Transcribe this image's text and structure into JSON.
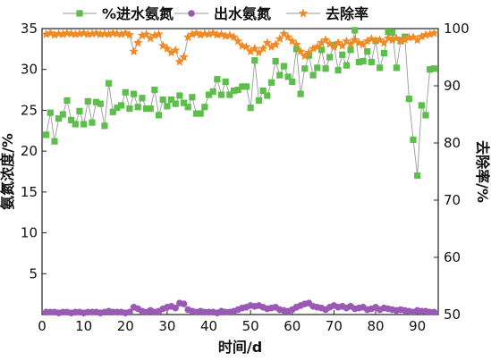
{
  "chart_data": {
    "type": "line",
    "xlabel": "时间/d",
    "ylabel_left": "氨氮浓度/%",
    "ylabel_right": "去除率/%",
    "xlim": [
      0,
      95
    ],
    "ylim_left": [
      0,
      35
    ],
    "ylim_right": [
      50,
      100
    ],
    "xticks": [
      0,
      10,
      20,
      30,
      40,
      50,
      60,
      70,
      80,
      90
    ],
    "yticks_left": [
      5,
      10,
      15,
      20,
      25,
      30,
      35
    ],
    "yticks_right": [
      50,
      60,
      70,
      80,
      90,
      100
    ],
    "legend": [
      "%进水氨氮",
      "出水氨氮",
      "去除率"
    ],
    "legend_position": "top",
    "grid": false,
    "colors": {
      "influent": "#5cbf4a",
      "effluent": "#9b59b6",
      "removal": "#f08a24",
      "connector": "#9a9a9a",
      "axis": "#222222"
    },
    "series": [
      {
        "name": "%进水氨氮",
        "axis": "left",
        "marker": "square",
        "x": [
          1,
          2,
          3,
          4,
          5,
          6,
          7,
          8,
          9,
          10,
          11,
          12,
          13,
          14,
          15,
          16,
          17,
          18,
          19,
          20,
          21,
          22,
          23,
          24,
          25,
          26,
          27,
          28,
          29,
          30,
          31,
          32,
          33,
          34,
          35,
          36,
          37,
          38,
          39,
          40,
          41,
          42,
          43,
          44,
          45,
          46,
          47,
          48,
          49,
          50,
          51,
          52,
          53,
          54,
          55,
          56,
          57,
          58,
          59,
          60,
          61,
          62,
          63,
          64,
          65,
          66,
          67,
          68,
          69,
          70,
          71,
          72,
          73,
          74,
          75,
          76,
          77,
          78,
          79,
          80,
          81,
          82,
          83,
          84,
          85,
          86,
          87,
          88,
          89,
          90,
          91,
          92,
          93,
          94
        ],
        "values": [
          22.0,
          24.7,
          21.2,
          24.0,
          24.5,
          26.2,
          23.8,
          23.3,
          24.9,
          23.3,
          26.1,
          23.5,
          26.0,
          25.8,
          23.1,
          28.3,
          24.8,
          25.3,
          25.6,
          27.2,
          25.2,
          27.0,
          25.4,
          26.5,
          25.2,
          25.2,
          27.5,
          24.4,
          26.3,
          25.5,
          26.3,
          25.8,
          26.8,
          25.9,
          25.4,
          26.6,
          24.6,
          24.6,
          25.4,
          26.9,
          27.3,
          28.8,
          26.9,
          28.5,
          26.9,
          27.4,
          27.5,
          27.9,
          27.9,
          25.3,
          31.1,
          26.2,
          27.4,
          26.8,
          28.4,
          31.0,
          29.3,
          30.4,
          29.1,
          28.5,
          32.5,
          27.0,
          30.1,
          31.7,
          29.3,
          30.2,
          32.4,
          30.1,
          31.5,
          33.0,
          29.9,
          31.8,
          30.5,
          32.4,
          34.8,
          30.9,
          31.0,
          32.2,
          30.9,
          33.5,
          30.2,
          32.0,
          34.6,
          34.5,
          30.2,
          33.5,
          34.0,
          26.4,
          21.4,
          17.0,
          25.6,
          24.4,
          30.0,
          30.1
        ]
      },
      {
        "name": "出水氨氮",
        "axis": "left",
        "marker": "circle",
        "x": [
          1,
          2,
          3,
          4,
          5,
          6,
          7,
          8,
          9,
          10,
          11,
          12,
          13,
          14,
          15,
          16,
          17,
          18,
          19,
          20,
          21,
          22,
          23,
          24,
          25,
          26,
          27,
          28,
          29,
          30,
          31,
          32,
          33,
          34,
          35,
          36,
          37,
          38,
          39,
          40,
          41,
          42,
          43,
          44,
          45,
          46,
          47,
          48,
          49,
          50,
          51,
          52,
          53,
          54,
          55,
          56,
          57,
          58,
          59,
          60,
          61,
          62,
          63,
          64,
          65,
          66,
          67,
          68,
          69,
          70,
          71,
          72,
          73,
          74,
          75,
          76,
          77,
          78,
          79,
          80,
          81,
          82,
          83,
          84,
          85,
          86,
          87,
          88,
          89,
          90,
          91,
          92,
          93,
          94
        ],
        "values": [
          0.3,
          0.3,
          0.3,
          0.2,
          0.3,
          0.3,
          0.2,
          0.3,
          0.3,
          0.2,
          0.3,
          0.3,
          0.3,
          0.2,
          0.3,
          0.4,
          0.3,
          0.3,
          0.3,
          0.2,
          0.3,
          0.9,
          0.7,
          0.4,
          0.3,
          0.5,
          0.3,
          0.4,
          0.7,
          0.9,
          1.0,
          0.8,
          1.4,
          1.3,
          0.6,
          0.4,
          0.3,
          0.4,
          0.3,
          0.3,
          0.3,
          0.2,
          0.4,
          0.3,
          0.3,
          0.4,
          0.6,
          0.8,
          0.9,
          1.1,
          1.0,
          1.1,
          0.9,
          0.7,
          0.8,
          0.9,
          0.6,
          0.5,
          0.4,
          0.6,
          0.9,
          1.1,
          1.3,
          1.4,
          1.0,
          0.9,
          0.8,
          0.6,
          0.9,
          1.1,
          0.9,
          1.0,
          0.8,
          1.0,
          0.7,
          0.8,
          0.9,
          0.6,
          0.7,
          0.9,
          0.6,
          0.8,
          0.7,
          0.6,
          0.5,
          0.6,
          0.5,
          0.4,
          0.3,
          0.5,
          0.4,
          0.4,
          0.3,
          0.3
        ]
      },
      {
        "name": "去除率",
        "axis": "right",
        "marker": "star",
        "x": [
          1,
          2,
          3,
          4,
          5,
          6,
          7,
          8,
          9,
          10,
          11,
          12,
          13,
          14,
          15,
          16,
          17,
          18,
          19,
          20,
          21,
          22,
          23,
          24,
          25,
          26,
          27,
          28,
          29,
          30,
          31,
          32,
          33,
          34,
          35,
          36,
          37,
          38,
          39,
          40,
          41,
          42,
          43,
          44,
          45,
          46,
          47,
          48,
          49,
          50,
          51,
          52,
          53,
          54,
          55,
          56,
          57,
          58,
          59,
          60,
          61,
          62,
          63,
          64,
          65,
          66,
          67,
          68,
          69,
          70,
          71,
          72,
          73,
          74,
          75,
          76,
          77,
          78,
          79,
          80,
          81,
          82,
          83,
          84,
          85,
          86,
          87,
          88,
          89,
          90,
          91,
          92,
          93,
          94
        ],
        "values": [
          99.0,
          99.2,
          98.9,
          99.1,
          99.0,
          99.2,
          99.1,
          99.0,
          99.1,
          99.2,
          99.0,
          99.1,
          99.2,
          99.0,
          99.1,
          99.0,
          99.2,
          99.1,
          99.0,
          99.2,
          98.9,
          96.0,
          97.5,
          98.8,
          99.0,
          98.3,
          98.8,
          99.0,
          97.0,
          96.5,
          95.8,
          96.2,
          94.2,
          95.0,
          98.5,
          99.0,
          99.2,
          98.9,
          99.1,
          99.0,
          99.2,
          98.9,
          99.0,
          98.7,
          98.8,
          98.5,
          97.8,
          97.0,
          96.8,
          96.0,
          96.5,
          95.8,
          96.5,
          97.5,
          96.8,
          97.2,
          98.2,
          99.1,
          98.5,
          97.8,
          97.2,
          96.0,
          95.2,
          95.8,
          96.5,
          96.8,
          97.5,
          98.0,
          97.3,
          96.8,
          97.5,
          97.0,
          97.8,
          97.3,
          98.0,
          97.5,
          97.2,
          97.8,
          98.2,
          97.9,
          98.0,
          97.5,
          98.3,
          98.0,
          98.3,
          97.8,
          98.1,
          98.4,
          98.5,
          98.0,
          98.6,
          98.9,
          99.0,
          99.2
        ]
      }
    ]
  }
}
